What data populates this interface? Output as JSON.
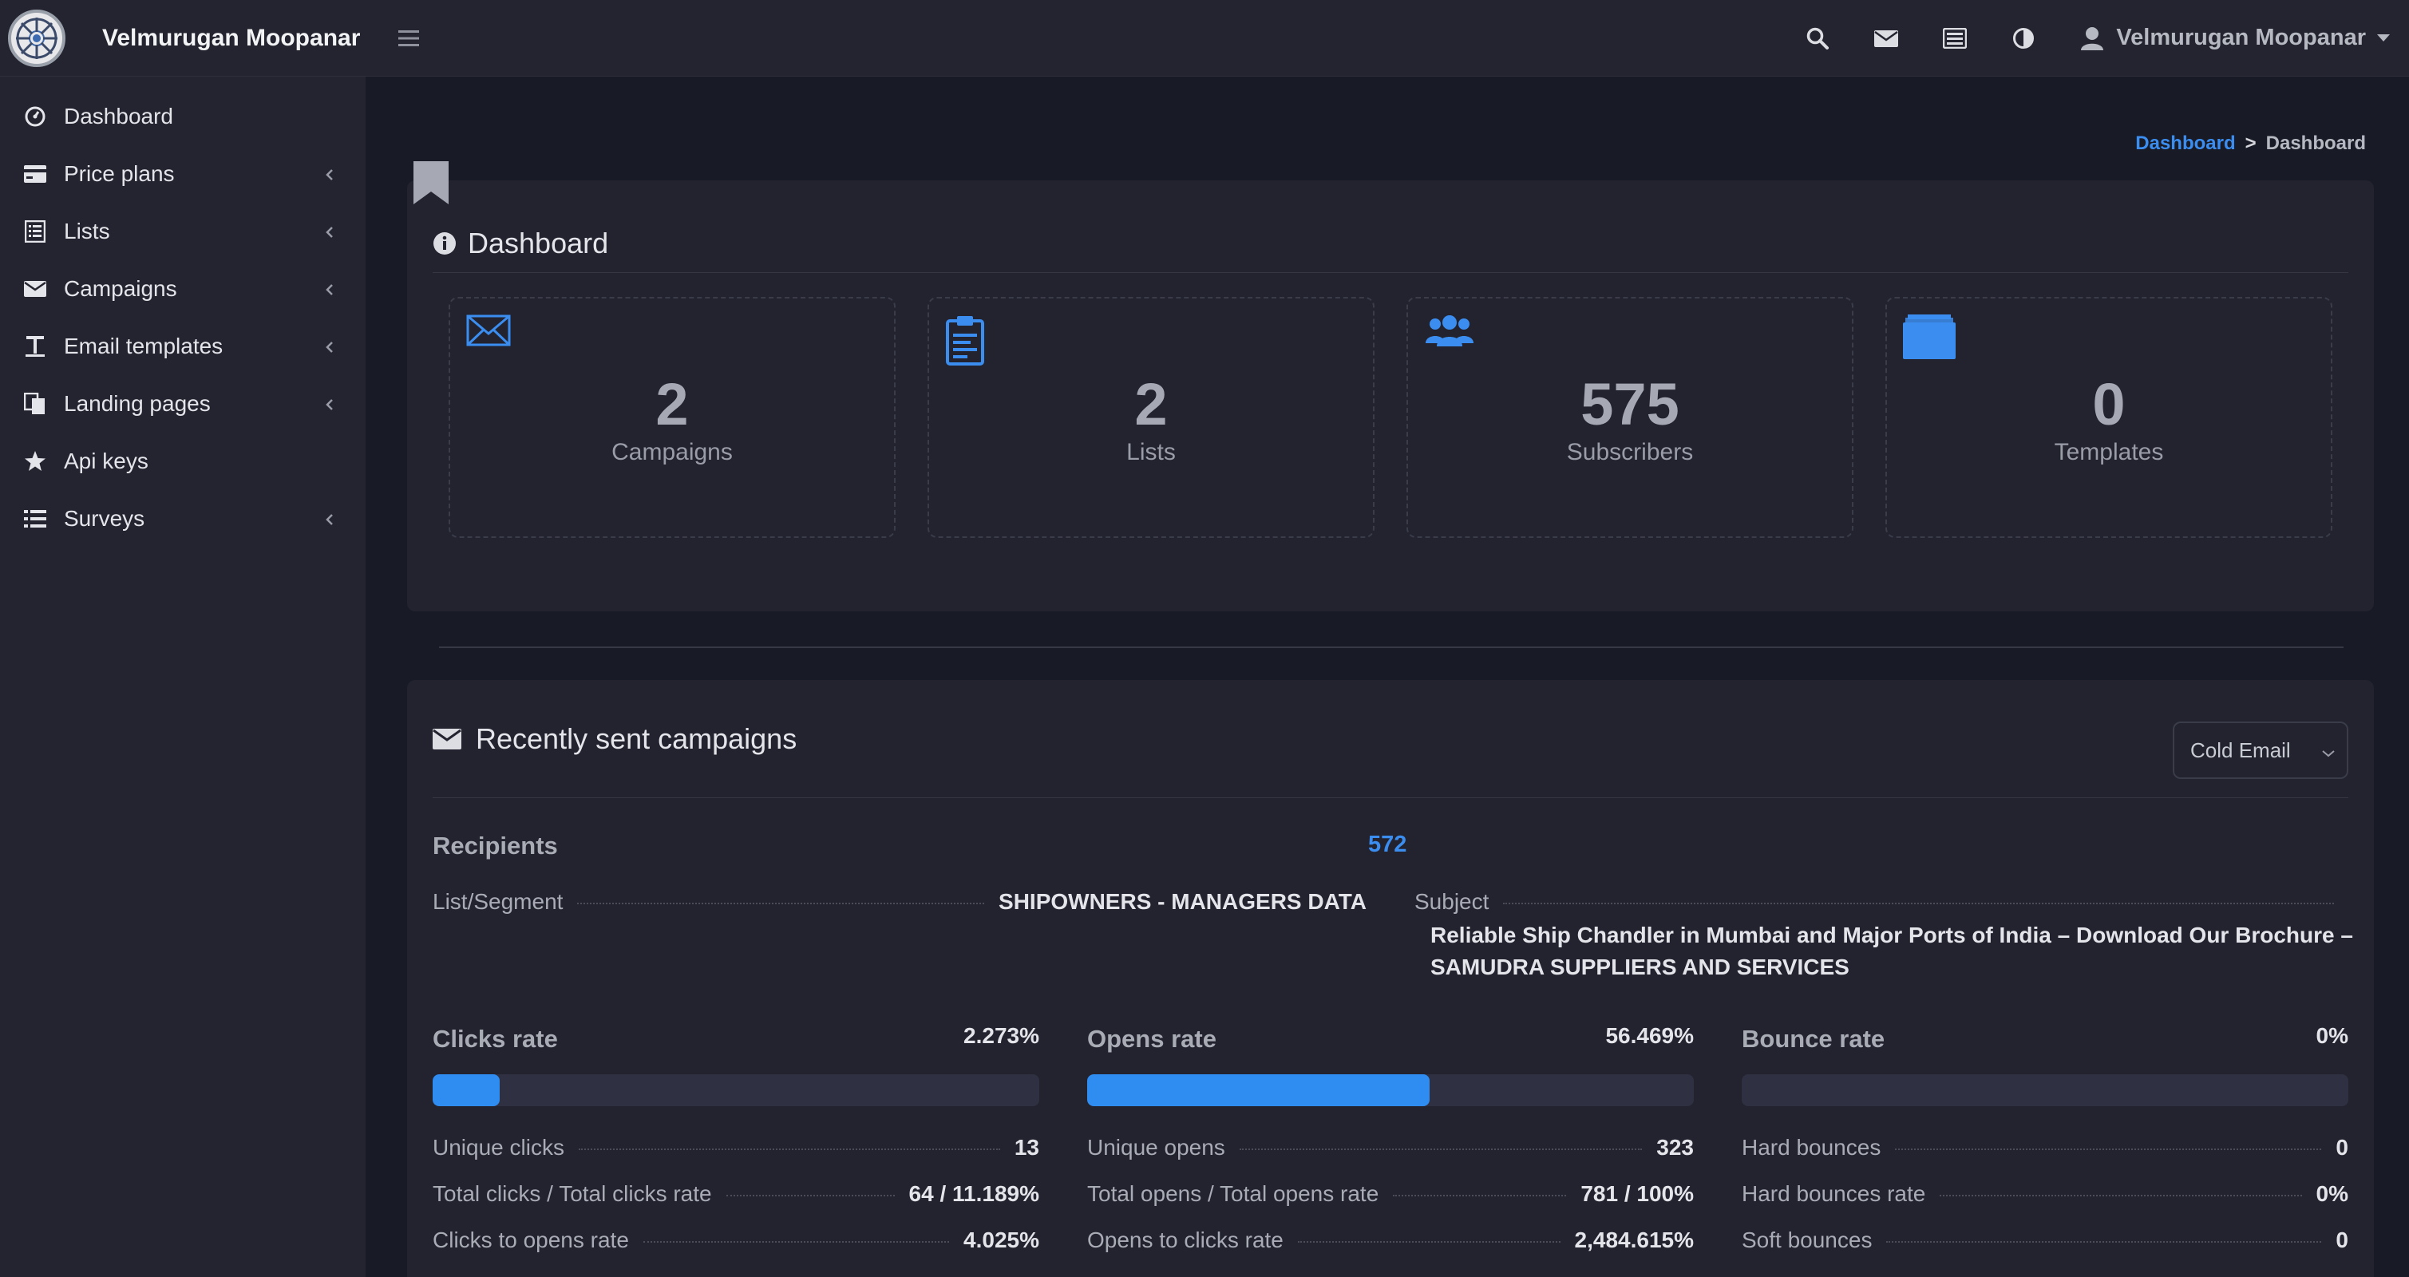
{
  "brand": {
    "name": "Velmurugan Moopanar"
  },
  "user": {
    "name": "Velmurugan Moopanar"
  },
  "sidebar": {
    "items": [
      {
        "label": "Dashboard",
        "icon": "dashboard-icon",
        "has_children": false
      },
      {
        "label": "Price plans",
        "icon": "credit-card-icon",
        "has_children": true
      },
      {
        "label": "Lists",
        "icon": "list-icon",
        "has_children": true
      },
      {
        "label": "Campaigns",
        "icon": "envelope-icon",
        "has_children": true
      },
      {
        "label": "Email templates",
        "icon": "text-icon",
        "has_children": true
      },
      {
        "label": "Landing pages",
        "icon": "copy-icon",
        "has_children": true
      },
      {
        "label": "Api keys",
        "icon": "star-icon",
        "has_children": false
      },
      {
        "label": "Surveys",
        "icon": "bullet-list-icon",
        "has_children": true
      }
    ]
  },
  "breadcrumb": {
    "link": "Dashboard",
    "separator": ">",
    "current": "Dashboard"
  },
  "dashboard": {
    "title": "Dashboard",
    "stats": [
      {
        "value": "2",
        "label": "Campaigns",
        "icon": "envelope-outline-icon"
      },
      {
        "value": "2",
        "label": "Lists",
        "icon": "clipboard-icon"
      },
      {
        "value": "575",
        "label": "Subscribers",
        "icon": "users-icon"
      },
      {
        "value": "0",
        "label": "Templates",
        "icon": "folder-icon"
      }
    ]
  },
  "campaigns": {
    "title": "Recently sent campaigns",
    "select_value": "Cold Email",
    "recipients_label": "Recipients",
    "recipients_value": "572",
    "list_label": "List/Segment",
    "list_value": "SHIPOWNERS - MANAGERS DATA",
    "subject_label": "Subject",
    "subject_value": "Reliable Ship Chandler in Mumbai and Major Ports of India – Download Our Brochure – SAMUDRA SUPPLIERS AND SERVICES",
    "rates": [
      {
        "title": "Clicks rate",
        "value": "2.273%",
        "fill": 0.11,
        "rows": [
          {
            "k": "Unique clicks",
            "v": "13"
          },
          {
            "k": "Total clicks / Total clicks rate",
            "v": "64 / 11.189%"
          },
          {
            "k": "Clicks to opens rate",
            "v": "4.025%"
          }
        ]
      },
      {
        "title": "Opens rate",
        "value": "56.469%",
        "fill": 0.565,
        "rows": [
          {
            "k": "Unique opens",
            "v": "323"
          },
          {
            "k": "Total opens / Total opens rate",
            "v": "781 / 100%"
          },
          {
            "k": "Opens to clicks rate",
            "v": "2,484.615%"
          }
        ]
      },
      {
        "title": "Bounce rate",
        "value": "0%",
        "fill": 0,
        "rows": [
          {
            "k": "Hard bounces",
            "v": "0"
          },
          {
            "k": "Hard bounces rate",
            "v": "0%"
          },
          {
            "k": "Soft bounces",
            "v": "0"
          }
        ]
      }
    ]
  },
  "colors": {
    "accent": "#2f8cf0",
    "link": "#3b8ef0",
    "background": "#181a26",
    "panel": "#22232f"
  }
}
